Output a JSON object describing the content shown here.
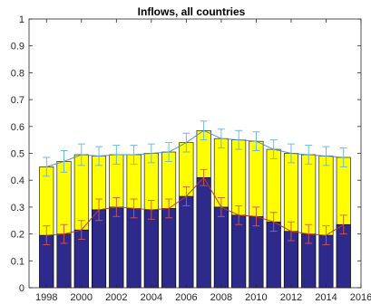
{
  "chart_data": {
    "type": "bar",
    "stacked": true,
    "title": "Inflows, all countries",
    "xlabel": "",
    "ylabel": "",
    "ylim": [
      0,
      1
    ],
    "xlim": [
      1997,
      2016
    ],
    "x_ticks": [
      "1998",
      "2000",
      "2002",
      "2004",
      "2006",
      "2008",
      "2010",
      "2012",
      "2014",
      "2016"
    ],
    "y_ticks": [
      "0",
      "0.1",
      "0.2",
      "0.3",
      "0.4",
      "0.5",
      "0.6",
      "0.7",
      "0.8",
      "0.9",
      "1"
    ],
    "grid": false,
    "categories": [
      1998,
      1999,
      2000,
      2001,
      2002,
      2003,
      2004,
      2005,
      2006,
      2007,
      2008,
      2009,
      2010,
      2011,
      2012,
      2013,
      2014,
      2015
    ],
    "series": [
      {
        "role": "bottom",
        "color": "#2e2a8c",
        "values": [
          0.195,
          0.2,
          0.215,
          0.29,
          0.3,
          0.295,
          0.29,
          0.295,
          0.34,
          0.41,
          0.3,
          0.27,
          0.265,
          0.245,
          0.21,
          0.2,
          0.195,
          0.235
        ],
        "error": [
          0.035,
          0.035,
          0.035,
          0.04,
          0.035,
          0.035,
          0.035,
          0.035,
          0.035,
          0.03,
          0.035,
          0.035,
          0.035,
          0.035,
          0.035,
          0.035,
          0.035,
          0.035
        ],
        "line_color": "#c0392b",
        "error_color": "#d9534f"
      },
      {
        "role": "total",
        "color": "#ffff00",
        "values": [
          0.45,
          0.47,
          0.495,
          0.49,
          0.495,
          0.495,
          0.5,
          0.505,
          0.54,
          0.585,
          0.555,
          0.55,
          0.545,
          0.515,
          0.5,
          0.495,
          0.49,
          0.485
        ],
        "error": [
          0.035,
          0.04,
          0.04,
          0.035,
          0.035,
          0.035,
          0.035,
          0.035,
          0.035,
          0.035,
          0.035,
          0.035,
          0.035,
          0.035,
          0.035,
          0.035,
          0.035,
          0.035
        ],
        "line_color": "#4a90d9",
        "error_color": "#5fb3e0"
      }
    ],
    "colors": {
      "edge": "#000000",
      "axis": "#262626"
    }
  }
}
